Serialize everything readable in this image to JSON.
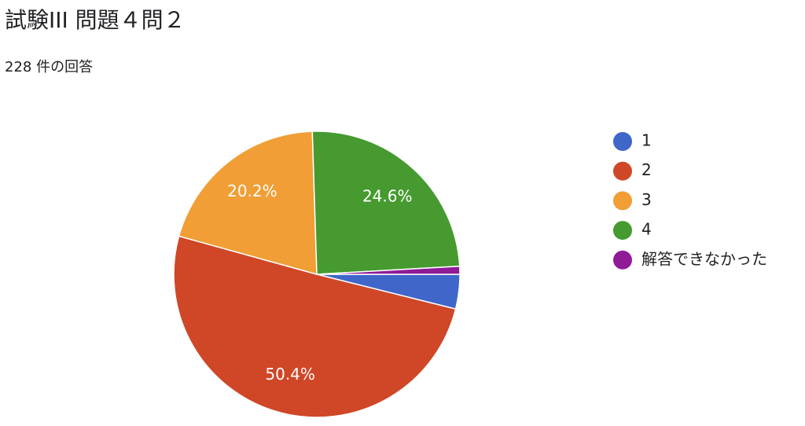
{
  "chart_data": {
    "type": "pie",
    "title": "試験III 問題４問２",
    "subtitle": "228 件の回答",
    "categories": [
      "1",
      "2",
      "3",
      "4",
      "解答できなかった"
    ],
    "values": [
      3.9,
      50.4,
      20.2,
      24.6,
      0.9
    ],
    "value_labels": [
      null,
      "50.4%",
      "20.2%",
      "24.6%",
      null
    ],
    "colors": [
      "#3f67c9",
      "#cf4727",
      "#f09e35",
      "#469a30",
      "#8f1b97"
    ],
    "legend": "right"
  }
}
